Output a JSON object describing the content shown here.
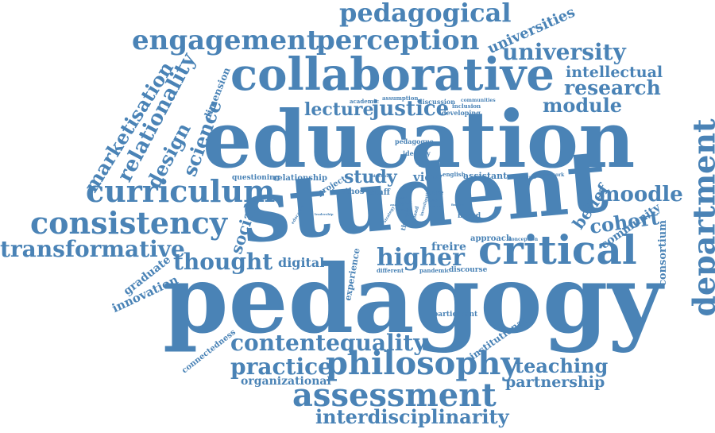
{
  "color": "#4a83b6",
  "words": [
    {
      "text": "pedagogy",
      "weight": 100
    },
    {
      "text": "education",
      "weight": 92
    },
    {
      "text": "student",
      "weight": 90
    },
    {
      "text": "collaborative",
      "weight": 55
    },
    {
      "text": "critical",
      "weight": 45
    },
    {
      "text": "curriculum",
      "weight": 38
    },
    {
      "text": "consistency",
      "weight": 36
    },
    {
      "text": "philosophy",
      "weight": 36
    },
    {
      "text": "department",
      "weight": 34
    },
    {
      "text": "assessment",
      "weight": 34
    },
    {
      "text": "perception",
      "weight": 30
    },
    {
      "text": "engagement",
      "weight": 30
    },
    {
      "text": "pedagogical",
      "weight": 30
    },
    {
      "text": "university",
      "weight": 26
    },
    {
      "text": "research",
      "weight": 24
    },
    {
      "text": "higher",
      "weight": 26
    },
    {
      "text": "transformative",
      "weight": 24
    },
    {
      "text": "thought",
      "weight": 24
    },
    {
      "text": "contentequality",
      "weight": 24
    },
    {
      "text": "practice",
      "weight": 24
    },
    {
      "text": "justice",
      "weight": 22
    },
    {
      "text": "relationality",
      "weight": 22
    },
    {
      "text": "marketisation",
      "weight": 22
    },
    {
      "text": "moodle",
      "weight": 22
    },
    {
      "text": "module",
      "weight": 22
    },
    {
      "text": "lecture",
      "weight": 20
    },
    {
      "text": "science",
      "weight": 20
    },
    {
      "text": "teaching",
      "weight": 20
    },
    {
      "text": "interdisciplinarity",
      "weight": 20
    },
    {
      "text": "design",
      "weight": 20
    },
    {
      "text": "cohort",
      "weight": 20
    },
    {
      "text": "study",
      "weight": 18
    },
    {
      "text": "intellectual",
      "weight": 18
    },
    {
      "text": "universities",
      "weight": 18
    },
    {
      "text": "partnership",
      "weight": 18
    },
    {
      "text": "belief",
      "weight": 18
    },
    {
      "text": "social",
      "weight": 18
    },
    {
      "text": "digital",
      "weight": 16
    },
    {
      "text": "freire",
      "weight": 14
    },
    {
      "text": "view",
      "weight": 14
    },
    {
      "text": "innovation",
      "weight": 14
    },
    {
      "text": "graduate",
      "weight": 14
    },
    {
      "text": "organizational",
      "weight": 14
    },
    {
      "text": "community",
      "weight": 14
    },
    {
      "text": "consortium",
      "weight": 14
    },
    {
      "text": "dimension",
      "weight": 12
    },
    {
      "text": "connectedness",
      "weight": 10
    },
    {
      "text": "institutional",
      "weight": 12
    },
    {
      "text": "experience",
      "weight": 11
    },
    {
      "text": "assistant",
      "weight": 11
    },
    {
      "text": "approach",
      "weight": 10
    },
    {
      "text": "relationship",
      "weight": 10
    },
    {
      "text": "questioning",
      "weight": 9
    },
    {
      "text": "ethos",
      "weight": 10
    },
    {
      "text": "staff",
      "weight": 10
    },
    {
      "text": "project",
      "weight": 10
    },
    {
      "text": "based",
      "weight": 9
    },
    {
      "text": "discourse",
      "weight": 9
    },
    {
      "text": "participant",
      "weight": 9
    },
    {
      "text": "identity",
      "weight": 8
    },
    {
      "text": "pedagogue",
      "weight": 8
    },
    {
      "text": "developing",
      "weight": 8
    },
    {
      "text": "discussion",
      "weight": 8
    },
    {
      "text": "assumption",
      "weight": 8
    },
    {
      "text": "inclusion",
      "weight": 7
    },
    {
      "text": "communities",
      "weight": 7
    },
    {
      "text": "academic",
      "weight": 7
    },
    {
      "text": "framework",
      "weight": 6
    },
    {
      "text": "institution",
      "weight": 6
    },
    {
      "text": "english",
      "weight": 7
    },
    {
      "text": "care",
      "weight": 8
    },
    {
      "text": "different",
      "weight": 7
    },
    {
      "text": "pandemic",
      "weight": 7
    },
    {
      "text": "conception",
      "weight": 6
    },
    {
      "text": "theory",
      "weight": 8
    },
    {
      "text": "book",
      "weight": 6
    },
    {
      "text": "case",
      "weight": 6
    },
    {
      "text": "educator",
      "weight": 6
    },
    {
      "text": "educative",
      "weight": 5
    },
    {
      "text": "leadership",
      "weight": 5
    },
    {
      "text": "investigation",
      "weight": 5
    },
    {
      "text": "analysis",
      "weight": 5
    },
    {
      "text": "finding",
      "weight": 5
    },
    {
      "text": "strategy",
      "weight": 5
    },
    {
      "text": "context",
      "weight": 5
    },
    {
      "text": "england",
      "weight": 5
    },
    {
      "text": "world",
      "weight": 5
    },
    {
      "text": "goal",
      "weight": 5
    }
  ]
}
